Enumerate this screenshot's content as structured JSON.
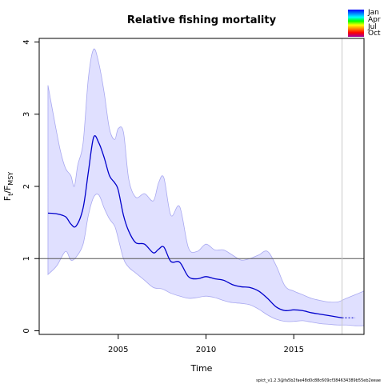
{
  "chart_data": {
    "type": "line",
    "title": "Relative fishing mortality",
    "xlabel": "Time",
    "ylabel": "F_t/F_MSY",
    "ylabel_parts": {
      "F1": "F",
      "s1": "t",
      "slash": "/F",
      "s2": "MSY"
    },
    "xlim": [
      2000.5,
      2019.0
    ],
    "ylim": [
      -0.05,
      4.05
    ],
    "x_ticks": [
      "2005",
      "2010",
      "2015"
    ],
    "y_ticks": [
      "0",
      "1",
      "2",
      "3",
      "4"
    ],
    "reference_line": {
      "y": 1
    },
    "last_observation_line": {
      "x": 2017.75
    },
    "estimate_end_x": 2017.75,
    "grid": false,
    "footnote": "spict_v1.2.3@fa5b2fae48d0c88c609cf384634389b55eb2eeae",
    "legend": {
      "placement": "top-right",
      "entries": [
        "Jan",
        "Apr",
        "Jul",
        "Oct"
      ],
      "colors": [
        "#0000ff",
        "#0080ff",
        "#00ffff",
        "#00ff00",
        "#ffff00",
        "#ff8000",
        "#ff0000",
        "#a000a0"
      ]
    },
    "colors": {
      "line": "#0000cc",
      "band_fill": "#e0e0ff",
      "band_edge": "#a8a8f0",
      "hline": "#555555",
      "vline": "#c8c8c8"
    },
    "series": [
      {
        "role": "estimate",
        "x": [
          2001.0,
          2001.5,
          2002.0,
          2002.3,
          2002.6,
          2003.0,
          2003.3,
          2003.6,
          2003.9,
          2004.2,
          2004.5,
          2004.8,
          2005.0,
          2005.3,
          2005.6,
          2006.0,
          2006.5,
          2007.0,
          2007.3,
          2007.6,
          2008.0,
          2008.5,
          2009.0,
          2009.5,
          2010.0,
          2010.5,
          2011.0,
          2011.5,
          2012.0,
          2012.5,
          2013.0,
          2013.5,
          2014.0,
          2014.5,
          2015.0,
          2015.5,
          2016.0,
          2016.5,
          2017.0,
          2017.5,
          2017.75,
          2018.0,
          2018.5
        ],
        "y": [
          1.63,
          1.62,
          1.58,
          1.48,
          1.45,
          1.7,
          2.2,
          2.68,
          2.6,
          2.4,
          2.15,
          2.05,
          1.95,
          1.6,
          1.38,
          1.22,
          1.2,
          1.08,
          1.13,
          1.16,
          0.96,
          0.95,
          0.75,
          0.72,
          0.75,
          0.72,
          0.7,
          0.64,
          0.61,
          0.6,
          0.55,
          0.45,
          0.33,
          0.28,
          0.29,
          0.28,
          0.25,
          0.23,
          0.21,
          0.19,
          0.18,
          0.18,
          0.18
        ]
      },
      {
        "role": "ci-upper",
        "x": [
          2001.0,
          2001.3,
          2001.7,
          2002.0,
          2002.3,
          2002.5,
          2002.7,
          2003.0,
          2003.3,
          2003.6,
          2003.9,
          2004.2,
          2004.5,
          2004.8,
          2005.0,
          2005.3,
          2005.6,
          2006.0,
          2006.5,
          2007.0,
          2007.3,
          2007.6,
          2008.0,
          2008.5,
          2009.0,
          2009.5,
          2010.0,
          2010.5,
          2011.0,
          2011.5,
          2012.0,
          2012.5,
          2013.0,
          2013.5,
          2014.0,
          2014.5,
          2015.0,
          2015.5,
          2016.0,
          2016.5,
          2017.0,
          2017.5,
          2018.0,
          2018.5,
          2019.0
        ],
        "y": [
          3.4,
          3.0,
          2.5,
          2.25,
          2.15,
          2.0,
          2.3,
          2.6,
          3.5,
          3.9,
          3.7,
          3.3,
          2.8,
          2.65,
          2.8,
          2.75,
          2.1,
          1.85,
          1.9,
          1.8,
          2.05,
          2.12,
          1.6,
          1.72,
          1.15,
          1.1,
          1.2,
          1.12,
          1.12,
          1.05,
          0.98,
          1.0,
          1.05,
          1.1,
          0.9,
          0.62,
          0.55,
          0.5,
          0.45,
          0.42,
          0.4,
          0.4,
          0.45,
          0.5,
          0.55
        ]
      },
      {
        "role": "ci-lower",
        "x": [
          2001.0,
          2001.5,
          2002.0,
          2002.3,
          2002.6,
          2003.0,
          2003.3,
          2003.6,
          2003.9,
          2004.2,
          2004.5,
          2004.8,
          2005.0,
          2005.3,
          2005.6,
          2006.0,
          2006.5,
          2007.0,
          2007.5,
          2008.0,
          2008.5,
          2009.0,
          2009.5,
          2010.0,
          2010.5,
          2011.0,
          2011.5,
          2012.0,
          2012.5,
          2013.0,
          2013.5,
          2014.0,
          2014.5,
          2015.0,
          2015.5,
          2016.0,
          2016.5,
          2017.0,
          2017.5,
          2018.0,
          2018.5,
          2019.0
        ],
        "y": [
          0.78,
          0.9,
          1.1,
          0.98,
          1.02,
          1.2,
          1.6,
          1.85,
          1.88,
          1.7,
          1.55,
          1.45,
          1.28,
          1.0,
          0.88,
          0.8,
          0.7,
          0.6,
          0.58,
          0.52,
          0.48,
          0.45,
          0.46,
          0.48,
          0.46,
          0.42,
          0.39,
          0.38,
          0.36,
          0.3,
          0.22,
          0.16,
          0.13,
          0.13,
          0.14,
          0.12,
          0.1,
          0.09,
          0.08,
          0.08,
          0.07,
          0.07
        ]
      }
    ]
  }
}
